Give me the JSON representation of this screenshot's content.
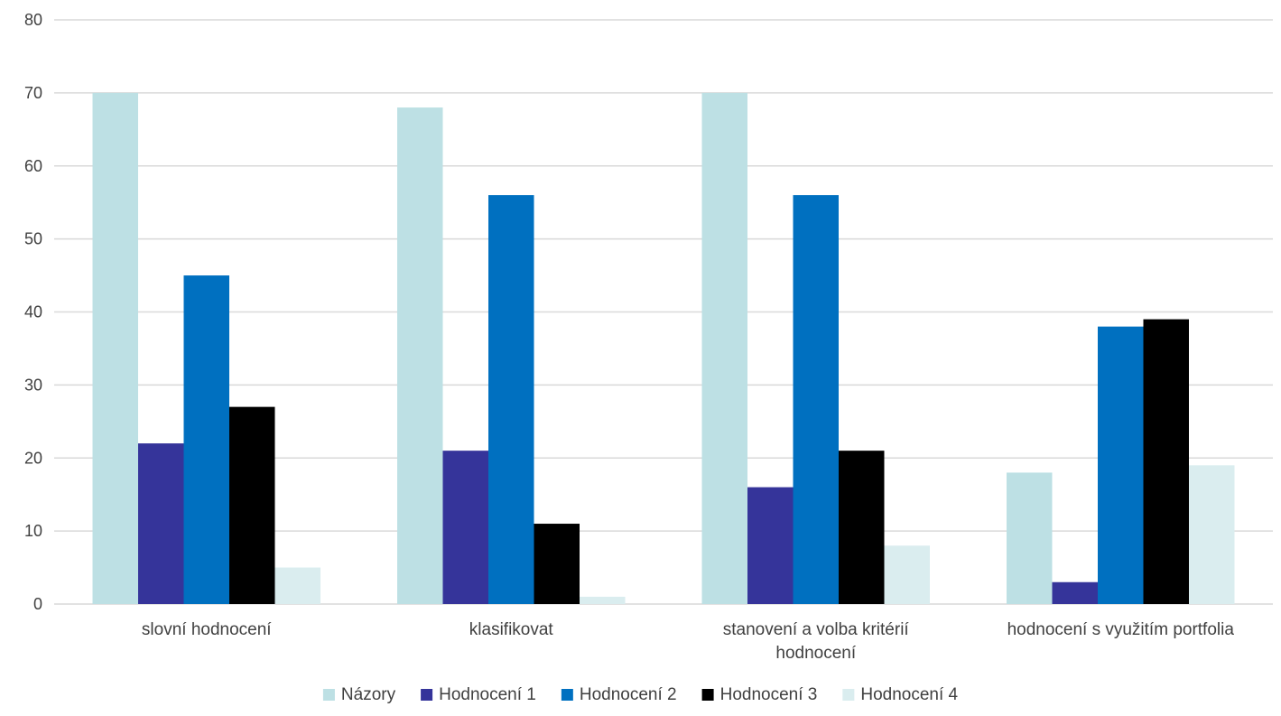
{
  "chart_data": {
    "type": "bar",
    "title": "",
    "xlabel": "",
    "ylabel": "",
    "ylim": [
      0,
      80
    ],
    "yticks": [
      0,
      10,
      20,
      30,
      40,
      50,
      60,
      70,
      80
    ],
    "grid": true,
    "legend_position": "bottom",
    "categories": [
      [
        "slovní hodnocení"
      ],
      [
        "klasifikovat"
      ],
      [
        "stanovení a volba kritérií",
        "hodnocení"
      ],
      [
        "hodnocení s využitím portfolia"
      ]
    ],
    "series": [
      {
        "name": "Názory",
        "color": "#bde0e4",
        "values": [
          70,
          68,
          70,
          18
        ]
      },
      {
        "name": "Hodnocení 1",
        "color": "#35349a",
        "values": [
          22,
          21,
          16,
          3
        ]
      },
      {
        "name": "Hodnocení 2",
        "color": "#0070c0",
        "values": [
          45,
          56,
          56,
          38
        ]
      },
      {
        "name": "Hodnocení 3",
        "color": "#000000",
        "values": [
          27,
          11,
          21,
          39
        ]
      },
      {
        "name": "Hodnocení 4",
        "color": "#daedef",
        "values": [
          5,
          1,
          8,
          19
        ]
      }
    ]
  }
}
